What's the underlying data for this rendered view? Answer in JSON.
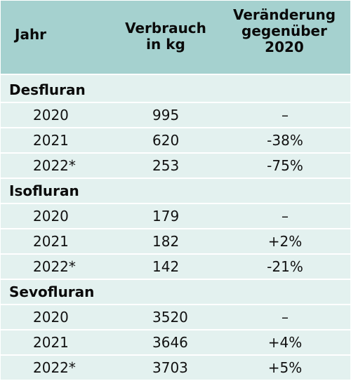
{
  "header": {
    "col1": "Jahr",
    "col2_line1": "Verbrauch",
    "col2_line2": "in kg",
    "col3_line1": "Veränderung",
    "col3_line2": "gegenüber",
    "col3_line3": "2020"
  },
  "groups": [
    {
      "name": "Desfluran",
      "rows": [
        {
          "year": "2020",
          "value": "995",
          "change": "–"
        },
        {
          "year": "2021",
          "value": "620",
          "change": "-38%"
        },
        {
          "year": "2022*",
          "value": "253",
          "change": "-75%"
        }
      ]
    },
    {
      "name": "Isofluran",
      "rows": [
        {
          "year": "2020",
          "value": "179",
          "change": "–"
        },
        {
          "year": "2021",
          "value": "182",
          "change": "+2%"
        },
        {
          "year": "2022*",
          "value": "142",
          "change": "-21%"
        }
      ]
    },
    {
      "name": "Sevofluran",
      "rows": [
        {
          "year": "2020",
          "value": "3520",
          "change": "–"
        },
        {
          "year": "2021",
          "value": "3646",
          "change": "+4%"
        },
        {
          "year": "2022*",
          "value": "3703",
          "change": "+5%"
        }
      ]
    }
  ],
  "colors": {
    "header_bg": "#a5d1cf",
    "body_bg": "#e3f1ef",
    "row_separator": "#ffffff"
  }
}
